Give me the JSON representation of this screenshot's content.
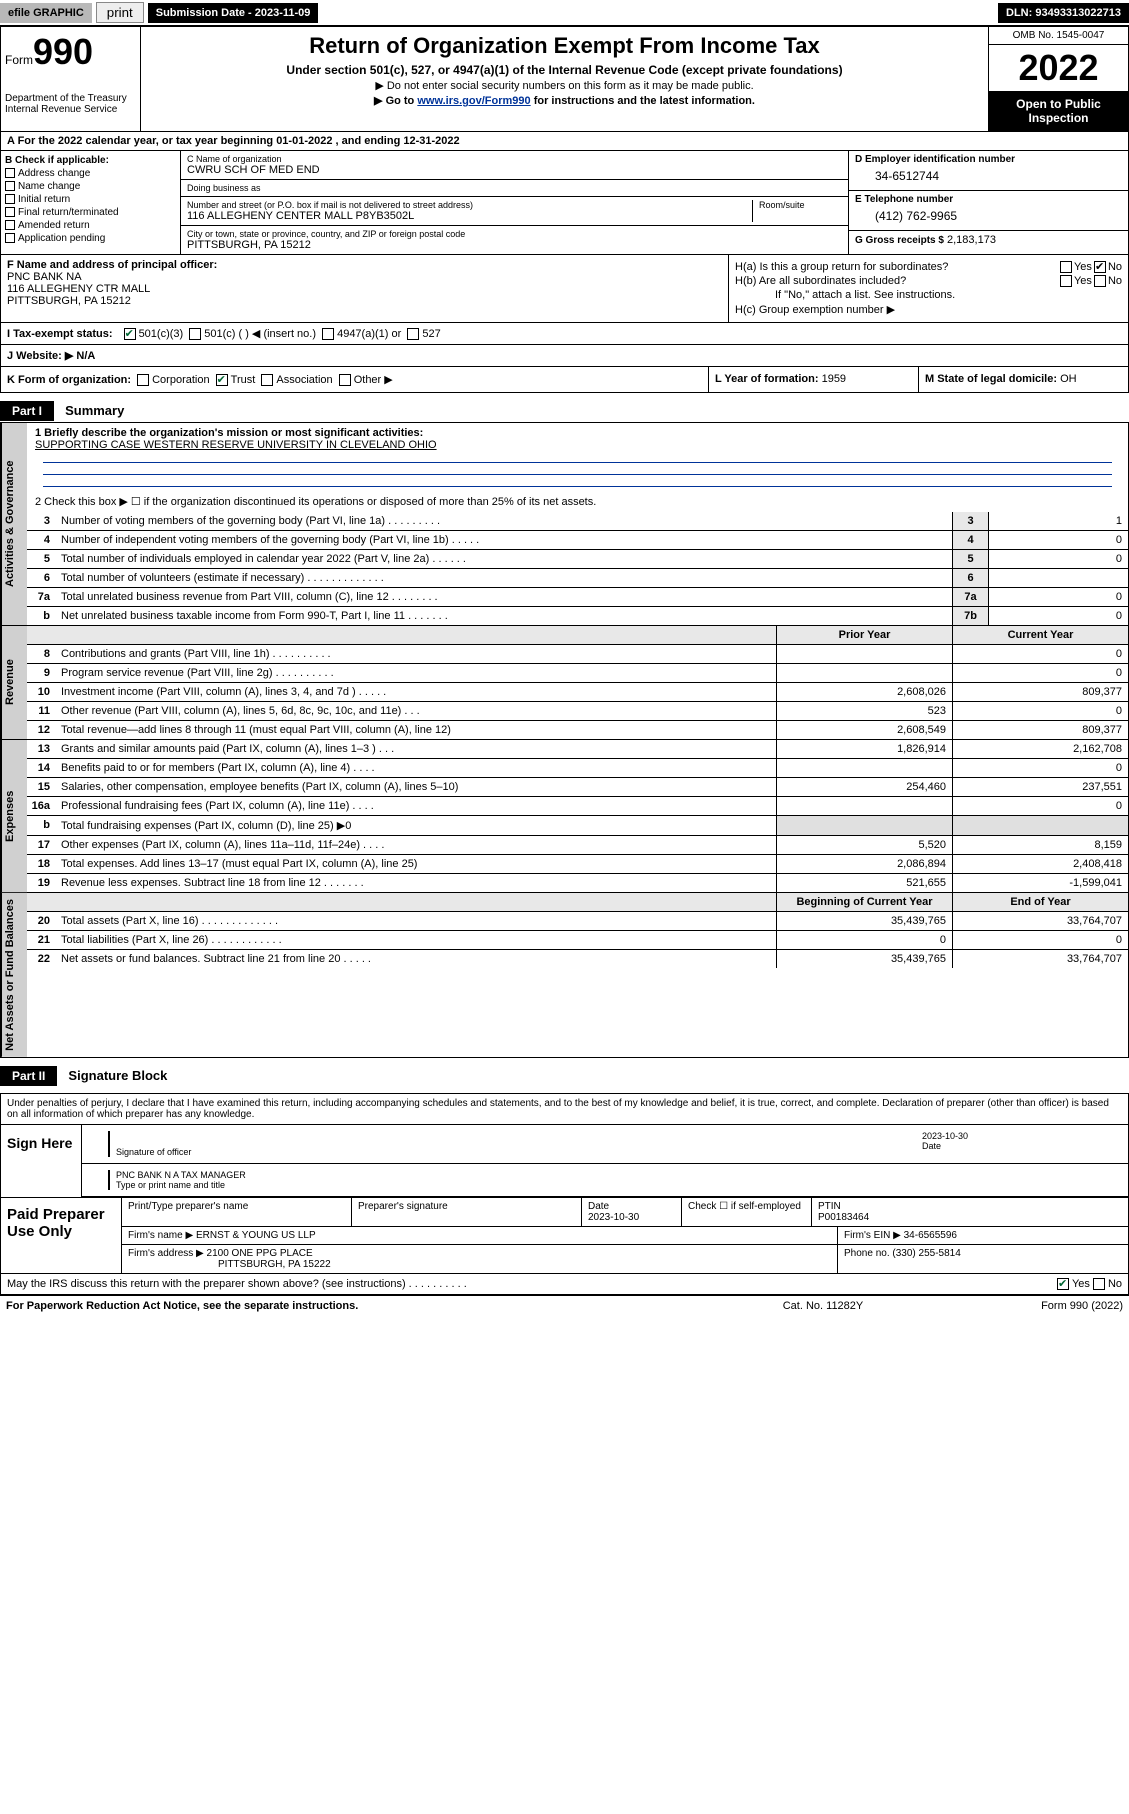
{
  "topbar": {
    "efile": "efile GRAPHIC",
    "print": "print",
    "sub_label": "Submission Date - 2023-11-09",
    "dln": "DLN: 93493313022713"
  },
  "hdr": {
    "form_prefix": "Form",
    "form_num": "990",
    "dept": "Department of the Treasury\nInternal Revenue Service",
    "title": "Return of Organization Exempt From Income Tax",
    "sub1": "Under section 501(c), 527, or 4947(a)(1) of the Internal Revenue Code (except private foundations)",
    "sub2": "▶ Do not enter social security numbers on this form as it may be made public.",
    "sub3_pre": "▶ Go to ",
    "sub3_link": "www.irs.gov/Form990",
    "sub3_post": " for instructions and the latest information.",
    "omb": "OMB No. 1545-0047",
    "year": "2022",
    "open": "Open to Public Inspection"
  },
  "row_a": "A For the 2022 calendar year, or tax year beginning 01-01-2022   , and ending 12-31-2022",
  "col_b": {
    "hdr": "B Check if applicable:",
    "items": [
      "Address change",
      "Name change",
      "Initial return",
      "Final return/terminated",
      "Amended return",
      "Application pending"
    ]
  },
  "col_c": {
    "name_lbl": "C Name of organization",
    "name": "CWRU SCH OF MED END",
    "dba_lbl": "Doing business as",
    "dba": "",
    "addr_lbl": "Number and street (or P.O. box if mail is not delivered to street address)",
    "room_lbl": "Room/suite",
    "addr": "116 ALLEGHENY CENTER MALL P8YB3502L",
    "city_lbl": "City or town, state or province, country, and ZIP or foreign postal code",
    "city": "PITTSBURGH, PA  15212"
  },
  "col_de": {
    "d_lbl": "D Employer identification number",
    "d_val": "34-6512744",
    "e_lbl": "E Telephone number",
    "e_val": "(412) 762-9965",
    "g_lbl": "G Gross receipts $",
    "g_val": "2,183,173"
  },
  "col_f": {
    "lbl": "F  Name and address of principal officer:",
    "l1": "PNC BANK NA",
    "l2": "116 ALLEGHENY CTR MALL",
    "l3": "PITTSBURGH, PA  15212"
  },
  "col_h": {
    "ha": "H(a)  Is this a group return for subordinates?",
    "hb": "H(b)  Are all subordinates included?",
    "hb2": "If \"No,\" attach a list. See instructions.",
    "hc": "H(c)  Group exemption number ▶"
  },
  "row_i": {
    "lbl": "I  Tax-exempt status:",
    "o1": "501(c)(3)",
    "o2": "501(c) (   ) ◀ (insert no.)",
    "o3": "4947(a)(1) or",
    "o4": "527"
  },
  "row_j": {
    "lbl": "J  Website: ▶",
    "val": "N/A"
  },
  "row_k": {
    "lbl": "K Form of organization:",
    "opts": [
      "Corporation",
      "Trust",
      "Association",
      "Other ▶"
    ]
  },
  "row_l": {
    "lbl": "L Year of formation:",
    "val": "1959"
  },
  "row_m": {
    "lbl": "M State of legal domicile:",
    "val": "OH"
  },
  "part1": {
    "hdr": "Part I",
    "title": "Summary"
  },
  "mission": {
    "lbl": "1  Briefly describe the organization's mission or most significant activities:",
    "txt": "SUPPORTING CASE WESTERN RESERVE UNIVERSITY IN CLEVELAND OHIO"
  },
  "line2": "2  Check this box ▶ ☐  if the organization discontinued its operations or disposed of more than 25% of its net assets.",
  "gov_rows": [
    {
      "n": "3",
      "t": "Number of voting members of the governing body (Part VI, line 1a)   .   .   .   .   .   .   .   .   .",
      "bn": "3",
      "v": "1"
    },
    {
      "n": "4",
      "t": "Number of independent voting members of the governing body (Part VI, line 1b)   .   .   .   .   .",
      "bn": "4",
      "v": "0"
    },
    {
      "n": "5",
      "t": "Total number of individuals employed in calendar year 2022 (Part V, line 2a)   .   .   .   .   .   .",
      "bn": "5",
      "v": "0"
    },
    {
      "n": "6",
      "t": "Total number of volunteers (estimate if necessary)   .   .   .   .   .   .   .   .   .   .   .   .   .",
      "bn": "6",
      "v": ""
    },
    {
      "n": "7a",
      "t": "Total unrelated business revenue from Part VIII, column (C), line 12   .   .   .   .   .   .   .   .",
      "bn": "7a",
      "v": "0"
    },
    {
      "n": "b",
      "t": "Net unrelated business taxable income from Form 990-T, Part I, line 11   .   .   .   .   .   .   .",
      "bn": "7b",
      "v": "0"
    }
  ],
  "rev_hdr": {
    "a": "",
    "b": "Prior Year",
    "c": "Current Year"
  },
  "rev_rows": [
    {
      "n": "8",
      "t": "Contributions and grants (Part VIII, line 1h)   .   .   .   .   .   .   .   .   .   .",
      "py": "",
      "cy": "0"
    },
    {
      "n": "9",
      "t": "Program service revenue (Part VIII, line 2g)   .   .   .   .   .   .   .   .   .   .",
      "py": "",
      "cy": "0"
    },
    {
      "n": "10",
      "t": "Investment income (Part VIII, column (A), lines 3, 4, and 7d )   .   .   .   .   .",
      "py": "2,608,026",
      "cy": "809,377"
    },
    {
      "n": "11",
      "t": "Other revenue (Part VIII, column (A), lines 5, 6d, 8c, 9c, 10c, and 11e)   .   .   .",
      "py": "523",
      "cy": "0"
    },
    {
      "n": "12",
      "t": "Total revenue—add lines 8 through 11 (must equal Part VIII, column (A), line 12)",
      "py": "2,608,549",
      "cy": "809,377"
    }
  ],
  "exp_rows": [
    {
      "n": "13",
      "t": "Grants and similar amounts paid (Part IX, column (A), lines 1–3 )   .   .   .",
      "py": "1,826,914",
      "cy": "2,162,708"
    },
    {
      "n": "14",
      "t": "Benefits paid to or for members (Part IX, column (A), line 4)   .   .   .   .",
      "py": "",
      "cy": "0"
    },
    {
      "n": "15",
      "t": "Salaries, other compensation, employee benefits (Part IX, column (A), lines 5–10)",
      "py": "254,460",
      "cy": "237,551"
    },
    {
      "n": "16a",
      "t": "Professional fundraising fees (Part IX, column (A), line 11e)   .   .   .   .",
      "py": "",
      "cy": "0"
    },
    {
      "n": "b",
      "t": "Total fundraising expenses (Part IX, column (D), line 25) ▶0",
      "py": "—",
      "cy": "—"
    },
    {
      "n": "17",
      "t": "Other expenses (Part IX, column (A), lines 11a–11d, 11f–24e)   .   .   .   .",
      "py": "5,520",
      "cy": "8,159"
    },
    {
      "n": "18",
      "t": "Total expenses. Add lines 13–17 (must equal Part IX, column (A), line 25)",
      "py": "2,086,894",
      "cy": "2,408,418"
    },
    {
      "n": "19",
      "t": "Revenue less expenses. Subtract line 18 from line 12   .   .   .   .   .   .   .",
      "py": "521,655",
      "cy": "-1,599,041"
    }
  ],
  "na_hdr": {
    "b": "Beginning of Current Year",
    "c": "End of Year"
  },
  "na_rows": [
    {
      "n": "20",
      "t": "Total assets (Part X, line 16)   .   .   .   .   .   .   .   .   .   .   .   .   .",
      "py": "35,439,765",
      "cy": "33,764,707"
    },
    {
      "n": "21",
      "t": "Total liabilities (Part X, line 26)   .   .   .   .   .   .   .   .   .   .   .   .",
      "py": "0",
      "cy": "0"
    },
    {
      "n": "22",
      "t": "Net assets or fund balances. Subtract line 21 from line 20   .   .   .   .   .",
      "py": "35,439,765",
      "cy": "33,764,707"
    }
  ],
  "tabs": {
    "gov": "Activities & Governance",
    "rev": "Revenue",
    "exp": "Expenses",
    "na": "Net Assets or Fund Balances"
  },
  "part2": {
    "hdr": "Part II",
    "title": "Signature Block"
  },
  "sig": {
    "decl": "Under penalties of perjury, I declare that I have examined this return, including accompanying schedules and statements, and to the best of my knowledge and belief, it is true, correct, and complete. Declaration of preparer (other than officer) is based on all information of which preparer has any knowledge.",
    "sign_here": "Sign Here",
    "off_lbl": "Signature of officer",
    "date_lbl": "Date",
    "date": "2023-10-30",
    "name": "PNC BANK N A  TAX MANAGER",
    "name_lbl": "Type or print name and title"
  },
  "paid": {
    "lbl": "Paid Preparer Use Only",
    "r1": {
      "a": "Print/Type preparer's name",
      "b": "Preparer's signature",
      "c": "Date",
      "cv": "2023-10-30",
      "d": "Check ☐ if self-employed",
      "e": "PTIN",
      "ev": "P00183464"
    },
    "r2": {
      "a": "Firm's name   ▶",
      "av": "ERNST & YOUNG US LLP",
      "b": "Firm's EIN ▶",
      "bv": "34-6565596"
    },
    "r3": {
      "a": "Firm's address ▶",
      "av": "2100 ONE PPG PLACE",
      "av2": "PITTSBURGH, PA  15222",
      "b": "Phone no.",
      "bv": "(330) 255-5814"
    }
  },
  "may": "May the IRS discuss this return with the preparer shown above? (see instructions)   .   .   .   .   .   .   .   .   .   .",
  "foot": {
    "a": "For Paperwork Reduction Act Notice, see the separate instructions.",
    "b": "Cat. No. 11282Y",
    "c": "Form 990 (2022)"
  }
}
